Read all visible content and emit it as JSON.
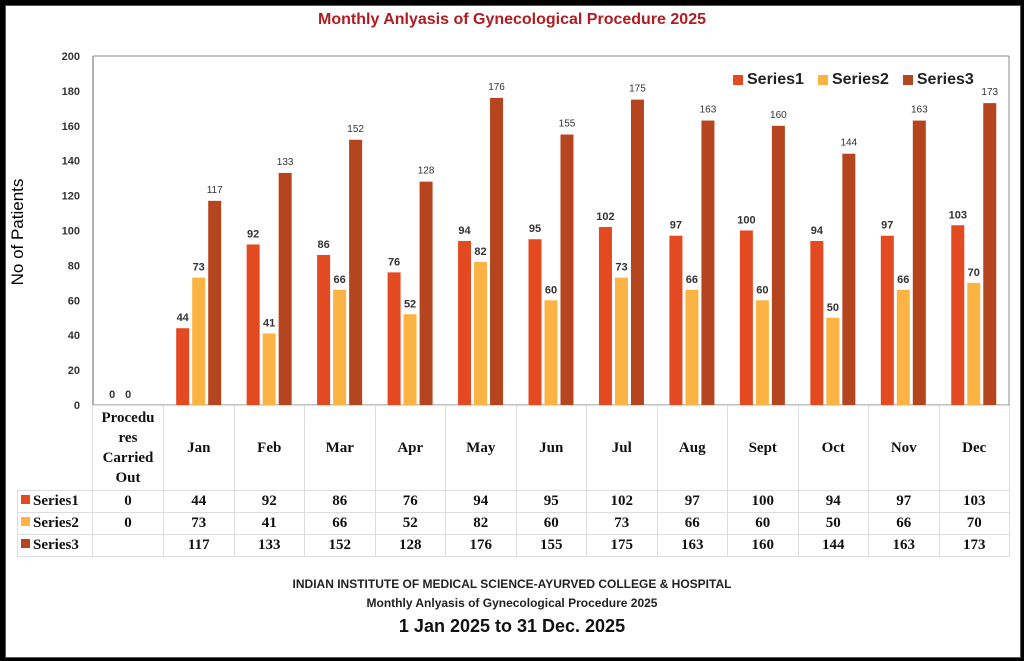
{
  "chart_data": {
    "type": "bar",
    "title": "Monthly Anlyasis of Gynecological Procedure  2025",
    "xlabel": "",
    "ylabel": "No of Patients",
    "ylim": [
      0,
      200
    ],
    "yticks": [
      0,
      20,
      40,
      60,
      80,
      100,
      120,
      140,
      160,
      180,
      200
    ],
    "grid": false,
    "legend": "top-right",
    "categories": [
      "Procedures Carried Out",
      "Jan",
      "Feb",
      "Mar",
      "Apr",
      "May",
      "Jun",
      "Jul",
      "Aug",
      "Sept",
      "Oct",
      "Nov",
      "Dec"
    ],
    "series": [
      {
        "name": "Series1",
        "color": "#E34A21",
        "values": [
          0,
          44,
          92,
          86,
          76,
          94,
          95,
          102,
          97,
          100,
          94,
          97,
          103
        ]
      },
      {
        "name": "Series2",
        "color": "#FBB444",
        "values": [
          0,
          73,
          41,
          66,
          52,
          82,
          60,
          73,
          66,
          60,
          50,
          66,
          70
        ]
      },
      {
        "name": "Series3",
        "color": "#B5451F",
        "values": [
          null,
          117,
          133,
          152,
          128,
          176,
          155,
          175,
          163,
          160,
          144,
          163,
          173
        ]
      }
    ]
  },
  "table": {
    "first_category_lines": [
      "Procedu",
      "res",
      "Carried",
      "Out"
    ],
    "rows": [
      {
        "name": "Series1",
        "cells": [
          "0",
          "44",
          "92",
          "86",
          "76",
          "94",
          "95",
          "102",
          "97",
          "100",
          "94",
          "97",
          "103"
        ]
      },
      {
        "name": "Series2",
        "cells": [
          "0",
          "73",
          "41",
          "66",
          "52",
          "82",
          "60",
          "73",
          "66",
          "60",
          "50",
          "66",
          "70"
        ]
      },
      {
        "name": "Series3",
        "cells": [
          "",
          "117",
          "133",
          "152",
          "128",
          "176",
          "155",
          "175",
          "163",
          "160",
          "144",
          "163",
          "173"
        ]
      }
    ]
  },
  "footer": {
    "institution": "INDIAN INSTITUTE OF MEDICAL SCIENCE-AYURVED COLLEGE & HOSPITAL",
    "subtitle": "Monthly Anlyasis of Gynecological Procedure  2025",
    "date_range": "1 Jan 2025 to 31 Dec. 2025"
  }
}
